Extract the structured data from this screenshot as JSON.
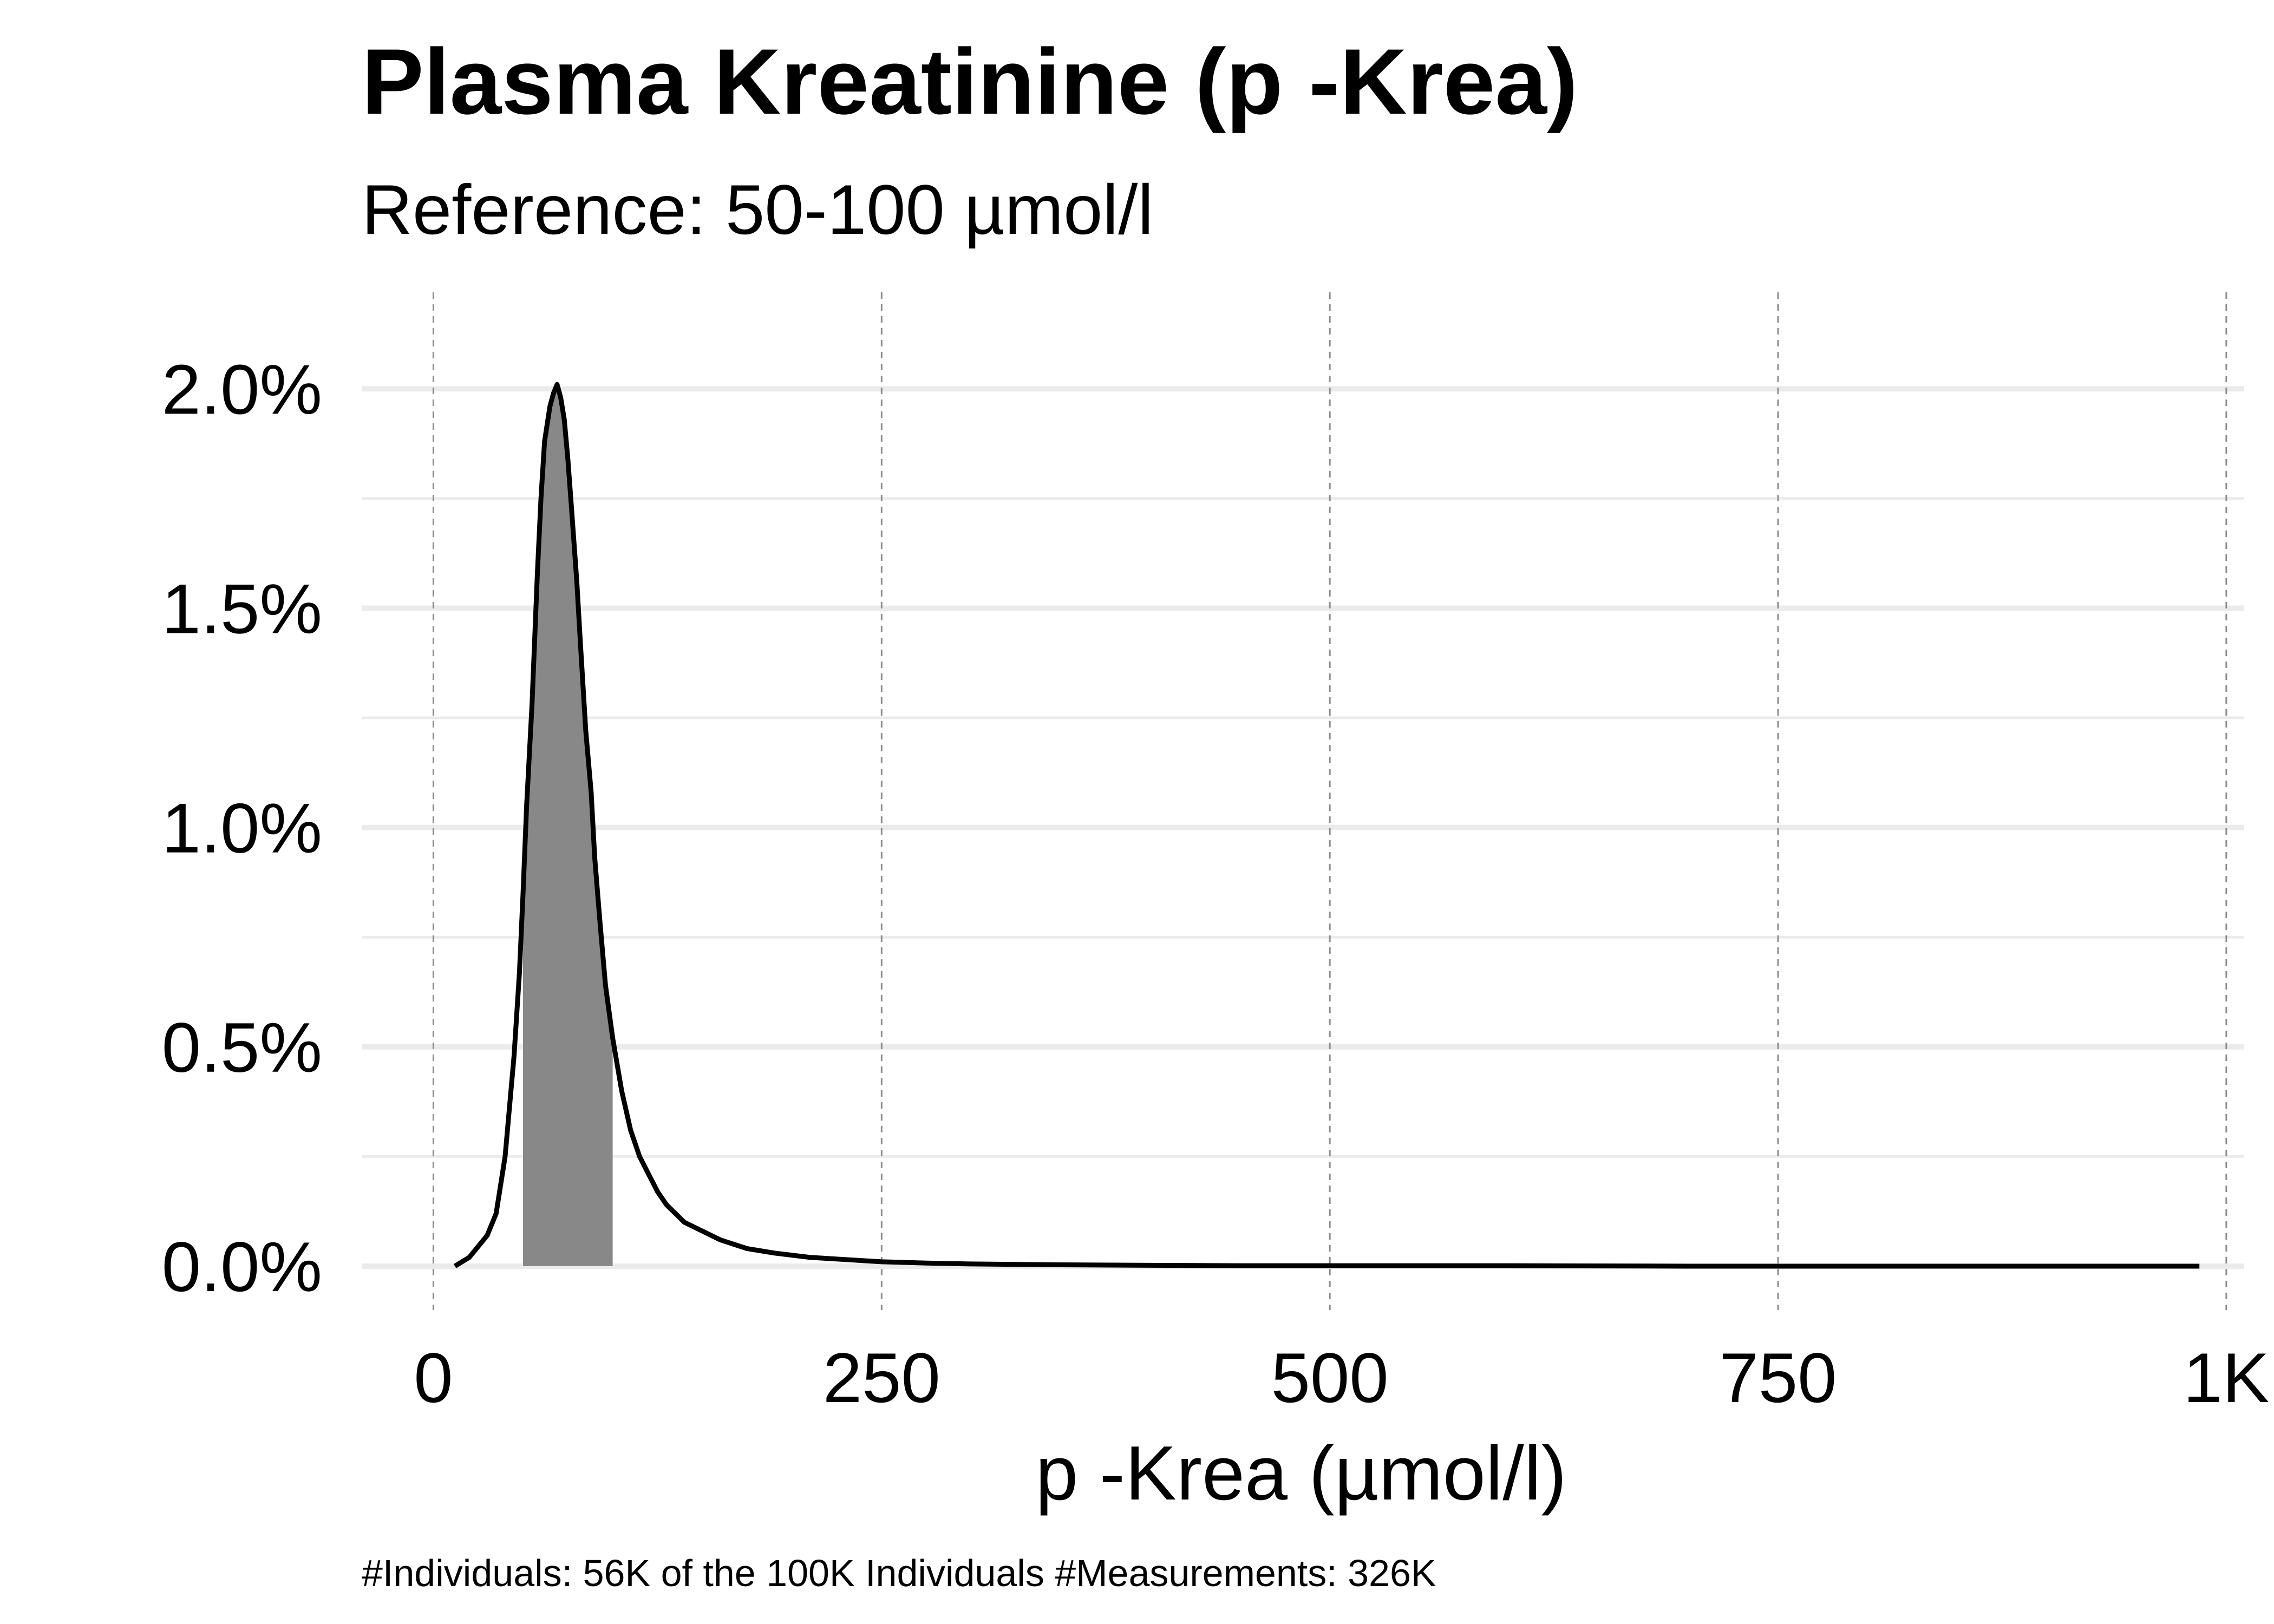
{
  "chart_data": {
    "type": "area",
    "title": "Plasma Kreatinine (p -Krea)",
    "subtitle": "Reference: 50-100 µmol/l",
    "xlabel": "p -Krea (µmol/l)",
    "ylabel": "",
    "caption": "#Individuals: 56K of the 100K Individuals #Measurements: 326K",
    "xlim": [
      -40,
      1010
    ],
    "ylim": [
      -0.001,
      0.0222
    ],
    "x_ticks": [
      0,
      250,
      500,
      750,
      1000
    ],
    "x_tick_labels": [
      "0",
      "250",
      "500",
      "750",
      "1K"
    ],
    "y_ticks": [
      0,
      0.005,
      0.01,
      0.015,
      0.02
    ],
    "y_tick_labels": [
      "0.0%",
      "0.5%",
      "1.0%",
      "1.5%",
      "2.0%"
    ],
    "y_minor_ticks": [
      0.0025,
      0.0075,
      0.0125,
      0.0175
    ],
    "grid": true,
    "reference_range": [
      50,
      100
    ],
    "series": [
      {
        "x": [
          12,
          20,
          25,
          30,
          35,
          40,
          45,
          48,
          50,
          52,
          55,
          58,
          60,
          62,
          65,
          67,
          69,
          71,
          73,
          75,
          77,
          80,
          82,
          85,
          88,
          90,
          93,
          96,
          100,
          105,
          110,
          115,
          120,
          125,
          130,
          140,
          150,
          160,
          175,
          190,
          210,
          230,
          250,
          275,
          300,
          350,
          400,
          450,
          500,
          600,
          700,
          800,
          900,
          985
        ],
        "y": [
          0.0,
          0.0002,
          0.00045,
          0.0007,
          0.0012,
          0.0025,
          0.0048,
          0.0067,
          0.0085,
          0.0105,
          0.0128,
          0.0158,
          0.0175,
          0.0188,
          0.0196,
          0.0199,
          0.0201,
          0.0198,
          0.0193,
          0.0184,
          0.0173,
          0.0156,
          0.0142,
          0.0122,
          0.0108,
          0.0093,
          0.0078,
          0.0064,
          0.0052,
          0.004,
          0.0031,
          0.0025,
          0.0021,
          0.0017,
          0.0014,
          0.001,
          0.0008,
          0.0006,
          0.0004,
          0.0003,
          0.0002,
          0.00015,
          0.0001,
          7e-05,
          5e-05,
          3e-05,
          2e-05,
          1e-05,
          1e-05,
          1e-05,
          0.0,
          0.0,
          0.0,
          0.0
        ]
      }
    ],
    "colors": {
      "line": "#000000",
      "shade": "#888888",
      "grid": "#ebebeb",
      "vgrid": "#8c8c8c"
    }
  }
}
